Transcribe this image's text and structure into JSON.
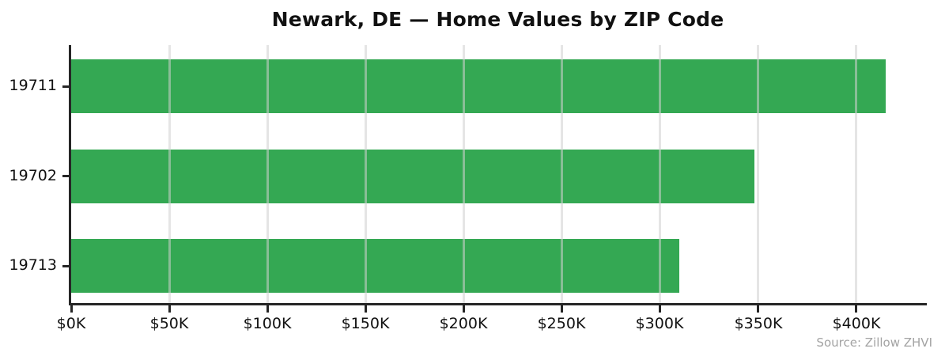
{
  "title": "Newark, DE — Home Values by ZIP Code",
  "source": "Source: Zillow ZHVI",
  "colors": {
    "bar": "#34a853",
    "axis": "#262626",
    "grid_overlay": "rgba(208,208,208,0.55)",
    "text": "#111111",
    "source_text": "#a3a3a3",
    "background": "#ffffff"
  },
  "chart_data": {
    "type": "bar",
    "orientation": "horizontal",
    "title": "Newark, DE — Home Values by ZIP Code",
    "categories": [
      "19711",
      "19702",
      "19713"
    ],
    "values": [
      415000,
      348000,
      310000
    ],
    "values_unit": "USD",
    "xlabel": "",
    "ylabel": "",
    "xlim": [
      0,
      436000
    ],
    "xticks": [
      0,
      50000,
      100000,
      150000,
      200000,
      250000,
      300000,
      350000,
      400000
    ],
    "xtick_labels": [
      "$0K",
      "$50K",
      "$100K",
      "$150K",
      "$200K",
      "$250K",
      "$300K",
      "$350K",
      "$400K"
    ],
    "grid": true,
    "grid_axis": "x",
    "legend": false,
    "annotation": "Source: Zillow ZHVI",
    "bar_color": "#34a853"
  }
}
